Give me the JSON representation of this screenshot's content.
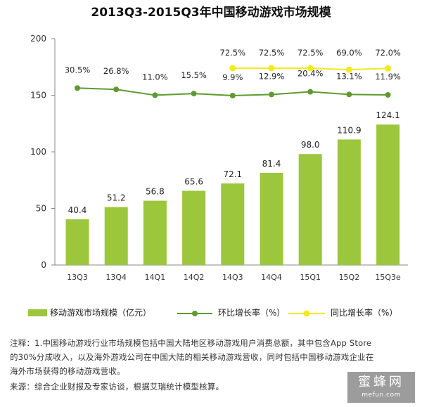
{
  "chart_data": {
    "type": "bar",
    "title": "2013Q3-2015Q3年中国移动游戏市场规模",
    "categories": [
      "13Q3",
      "13Q4",
      "14Q1",
      "14Q2",
      "14Q3",
      "14Q4",
      "15Q1",
      "15Q2",
      "15Q3e"
    ],
    "ylim": [
      0,
      200
    ],
    "yticks": [
      "0",
      "50",
      "100",
      "150",
      "200"
    ],
    "series": [
      {
        "name": "移动游戏市场规模（亿元）",
        "type": "bar",
        "color": "#9cc63b",
        "values": [
          40.4,
          51.2,
          56.8,
          65.6,
          72.1,
          81.4,
          98.0,
          110.9,
          124.1
        ],
        "labels": [
          "40.4",
          "51.2",
          "56.8",
          "65.6",
          "72.1",
          "81.4",
          "98.0",
          "110.9",
          "124.1"
        ]
      },
      {
        "name": "环比增长率（%）",
        "type": "line",
        "color": "#5e9a2f",
        "values": [
          30.5,
          26.8,
          11.0,
          15.5,
          9.9,
          12.9,
          20.4,
          13.1,
          11.9
        ],
        "labels": [
          "30.5%",
          "26.8%",
          "11.0%",
          "15.5%",
          "9.9%",
          "12.9%",
          "20.4%",
          "13.1%",
          "11.9%"
        ]
      },
      {
        "name": "同比增长率（%）",
        "type": "line",
        "color": "#f2ea1c",
        "values": [
          null,
          null,
          null,
          null,
          72.5,
          72.5,
          72.5,
          69.0,
          72.0
        ],
        "labels": [
          "",
          "",
          "",
          "",
          "72.5%",
          "72.5%",
          "72.5%",
          "69.0%",
          "72.0%"
        ]
      }
    ],
    "grid": false,
    "legend": "bottom"
  },
  "notes": {
    "line1": "注释：1.中国移动游戏行业市场规模包括中国大陆地区移动游戏用户消费总额，其中包含App Store",
    "line2": "的30%分成收入，以及海外游戏公司在中国大陆的相关移动游戏营收，同时包括中国移动游戏企业在",
    "line3": "海外市场获得的移动游戏营收。",
    "source": "来源：综合企业财报及专家访谈，根据艾瑞统计模型核算。"
  },
  "watermark": {
    "main": "蜜蜂网",
    "sub": "mefun.com"
  }
}
